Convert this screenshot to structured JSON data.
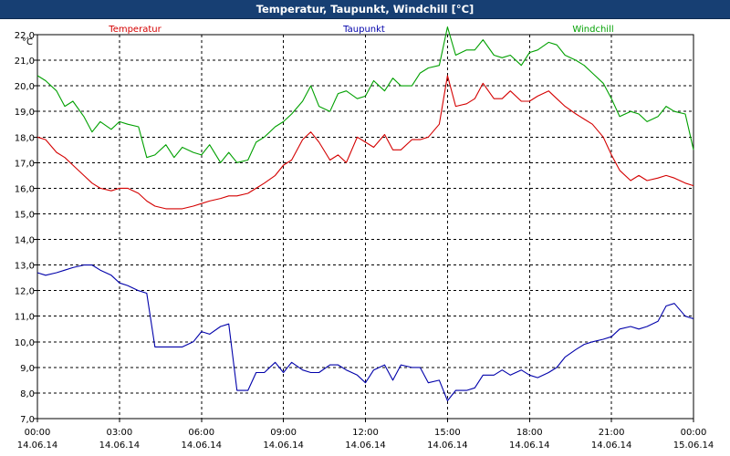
{
  "window": {
    "title": "Temperatur, Taupunkt, Windchill [°C]"
  },
  "colors": {
    "title_bar": "#173f73",
    "temperatur": "#d40000",
    "taupunkt": "#0000aa",
    "windchill": "#00a000",
    "grid": "#000000"
  },
  "chart_data": {
    "type": "line",
    "title": "Temperatur, Taupunkt, Windchill [°C]",
    "y_unit": "°C",
    "ylim": [
      7.0,
      22.0
    ],
    "y_ticks": [
      "7,0",
      "8,0",
      "9,0",
      "10,0",
      "11,0",
      "12,0",
      "13,0",
      "14,0",
      "15,0",
      "16,0",
      "17,0",
      "18,0",
      "19,0",
      "20,0",
      "21,0",
      "22,0"
    ],
    "xlim": [
      0,
      24
    ],
    "x_ticks": [
      {
        "x": 0,
        "time": "00:00",
        "date": "14.06.14"
      },
      {
        "x": 3,
        "time": "03:00",
        "date": "14.06.14"
      },
      {
        "x": 6,
        "time": "06:00",
        "date": "14.06.14"
      },
      {
        "x": 9,
        "time": "09:00",
        "date": "14.06.14"
      },
      {
        "x": 12,
        "time": "12:00",
        "date": "14.06.14"
      },
      {
        "x": 15,
        "time": "15:00",
        "date": "14.06.14"
      },
      {
        "x": 18,
        "time": "18:00",
        "date": "14.06.14"
      },
      {
        "x": 21,
        "time": "21:00",
        "date": "14.06.14"
      },
      {
        "x": 24,
        "time": "00:00",
        "date": "15.06.14"
      }
    ],
    "grid": true,
    "legend": "top",
    "series": [
      {
        "name": "Temperatur",
        "color": "#d40000",
        "x": [
          0,
          0.3,
          0.7,
          1,
          1.3,
          1.7,
          2,
          2.3,
          2.7,
          3,
          3.3,
          3.7,
          4,
          4.3,
          4.7,
          5,
          5.3,
          5.7,
          6,
          6.3,
          6.7,
          7,
          7.3,
          7.7,
          8,
          8.3,
          8.7,
          9,
          9.3,
          9.7,
          10,
          10.3,
          10.7,
          11,
          11.3,
          11.7,
          12,
          12.3,
          12.7,
          13,
          13.3,
          13.7,
          14,
          14.3,
          14.7,
          15,
          15.3,
          15.7,
          16,
          16.3,
          16.7,
          17,
          17.3,
          17.7,
          18,
          18.3,
          18.7,
          19,
          19.3,
          19.7,
          20,
          20.3,
          20.7,
          21,
          21.3,
          21.7,
          22,
          22.3,
          22.7,
          23,
          23.3,
          23.7,
          24
        ],
        "values": [
          18.0,
          17.9,
          17.4,
          17.2,
          16.9,
          16.5,
          16.2,
          16.0,
          15.9,
          16.0,
          16.0,
          15.8,
          15.5,
          15.3,
          15.2,
          15.2,
          15.2,
          15.3,
          15.4,
          15.5,
          15.6,
          15.7,
          15.7,
          15.8,
          16.0,
          16.2,
          16.5,
          16.9,
          17.1,
          17.9,
          18.2,
          17.8,
          17.1,
          17.3,
          17.0,
          18.0,
          17.8,
          17.6,
          18.1,
          17.5,
          17.5,
          17.9,
          17.9,
          18.0,
          18.5,
          20.4,
          19.2,
          19.3,
          19.5,
          20.1,
          19.5,
          19.5,
          19.8,
          19.4,
          19.4,
          19.6,
          19.8,
          19.5,
          19.2,
          18.9,
          18.7,
          18.5,
          18.0,
          17.3,
          16.7,
          16.3,
          16.5,
          16.3,
          16.4,
          16.5,
          16.4,
          16.2,
          16.1
        ]
      },
      {
        "name": "Taupunkt",
        "color": "#0000aa",
        "x": [
          0,
          0.3,
          0.7,
          1,
          1.3,
          1.7,
          2,
          2.3,
          2.7,
          3,
          3.3,
          3.7,
          4,
          4.3,
          4.7,
          5,
          5.3,
          5.7,
          6,
          6.3,
          6.7,
          7,
          7.3,
          7.7,
          8,
          8.3,
          8.7,
          9,
          9.3,
          9.7,
          10,
          10.3,
          10.7,
          11,
          11.3,
          11.7,
          12,
          12.3,
          12.7,
          13,
          13.3,
          13.7,
          14,
          14.3,
          14.7,
          15,
          15.3,
          15.7,
          16,
          16.3,
          16.7,
          17,
          17.3,
          17.7,
          18,
          18.3,
          18.7,
          19,
          19.3,
          19.7,
          20,
          20.3,
          20.7,
          21,
          21.3,
          21.7,
          22,
          22.3,
          22.7,
          23,
          23.3,
          23.7,
          24
        ],
        "values": [
          12.7,
          12.6,
          12.7,
          12.8,
          12.9,
          13.0,
          13.0,
          12.8,
          12.6,
          12.3,
          12.2,
          12.0,
          11.9,
          9.8,
          9.8,
          9.8,
          9.8,
          10.0,
          10.4,
          10.3,
          10.6,
          10.7,
          8.1,
          8.1,
          8.8,
          8.8,
          9.2,
          8.8,
          9.2,
          8.9,
          8.8,
          8.8,
          9.1,
          9.1,
          8.9,
          8.7,
          8.4,
          8.9,
          9.1,
          8.5,
          9.1,
          9.0,
          9.0,
          8.4,
          8.5,
          7.7,
          8.1,
          8.1,
          8.2,
          8.7,
          8.7,
          8.9,
          8.7,
          8.9,
          8.7,
          8.6,
          8.8,
          9.0,
          9.4,
          9.7,
          9.9,
          10.0,
          10.1,
          10.2,
          10.5,
          10.6,
          10.5,
          10.6,
          10.8,
          11.4,
          11.5,
          11.0,
          10.9
        ]
      },
      {
        "name": "Windchill",
        "color": "#00a000",
        "x": [
          0,
          0.3,
          0.7,
          1,
          1.3,
          1.7,
          2,
          2.3,
          2.7,
          3,
          3.3,
          3.7,
          4,
          4.3,
          4.7,
          5,
          5.3,
          5.7,
          6,
          6.3,
          6.7,
          7,
          7.3,
          7.7,
          8,
          8.3,
          8.7,
          9,
          9.3,
          9.7,
          10,
          10.3,
          10.7,
          11,
          11.3,
          11.7,
          12,
          12.3,
          12.7,
          13,
          13.3,
          13.7,
          14,
          14.3,
          14.7,
          15,
          15.3,
          15.7,
          16,
          16.3,
          16.7,
          17,
          17.3,
          17.7,
          18,
          18.3,
          18.7,
          19,
          19.3,
          19.7,
          20,
          20.3,
          20.7,
          21,
          21.3,
          21.7,
          22,
          22.3,
          22.7,
          23,
          23.3,
          23.7,
          24
        ],
        "values": [
          20.4,
          20.2,
          19.8,
          19.2,
          19.4,
          18.8,
          18.2,
          18.6,
          18.3,
          18.6,
          18.5,
          18.4,
          17.2,
          17.3,
          17.7,
          17.2,
          17.6,
          17.4,
          17.3,
          17.7,
          17.0,
          17.4,
          17.0,
          17.1,
          17.8,
          18.0,
          18.4,
          18.6,
          18.9,
          19.4,
          20.0,
          19.2,
          19.0,
          19.7,
          19.8,
          19.5,
          19.6,
          20.2,
          19.8,
          20.3,
          20.0,
          20.0,
          20.5,
          20.7,
          20.8,
          22.3,
          21.2,
          21.4,
          21.4,
          21.8,
          21.2,
          21.1,
          21.2,
          20.8,
          21.3,
          21.4,
          21.7,
          21.6,
          21.2,
          21.0,
          20.8,
          20.5,
          20.1,
          19.5,
          18.8,
          19.0,
          18.9,
          18.6,
          18.8,
          19.2,
          19.0,
          18.9,
          17.5
        ]
      }
    ]
  }
}
